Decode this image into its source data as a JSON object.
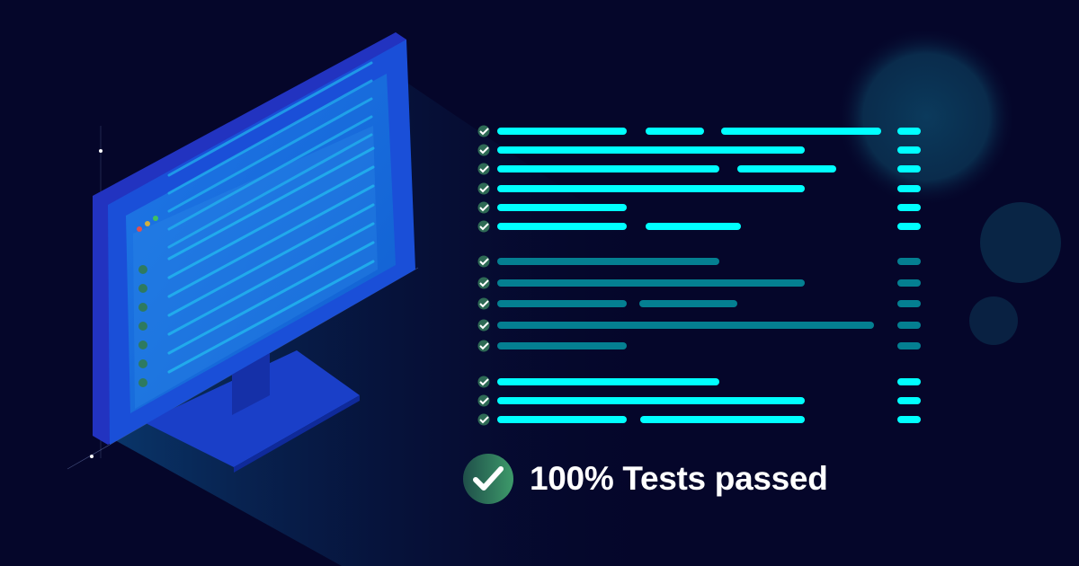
{
  "headline": {
    "text": "100% Tests passed",
    "icon": "check-circle-icon"
  },
  "test_groups": [
    {
      "status": "passed",
      "rows": 6,
      "color": "#00ffff"
    },
    {
      "status": "passed",
      "rows": 5,
      "color": "#047f91"
    },
    {
      "status": "passed",
      "rows": 3,
      "color": "#00ffff"
    }
  ],
  "colors": {
    "background": "#05062a",
    "bar_bright": "#00ffff",
    "bar_dim": "#047f91",
    "check_green": "#3d9a6a",
    "monitor_blue": "#1a4fd8"
  }
}
